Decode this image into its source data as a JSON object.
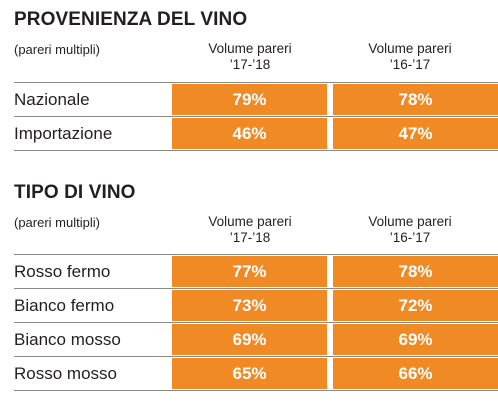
{
  "sections": [
    {
      "title": "PROVENIENZA DEL VINO",
      "subtitle": "(pareri multipli)",
      "columns": [
        {
          "line1": "Volume pareri",
          "line2": "’17-’18"
        },
        {
          "line1": "Volume pareri",
          "line2": "’16-’17"
        }
      ],
      "rows": [
        {
          "label": "Nazionale",
          "v1": "79%",
          "v2": "78%"
        },
        {
          "label": "Importazione",
          "v1": "46%",
          "v2": "47%"
        }
      ]
    },
    {
      "title": "TIPO DI VINO",
      "subtitle": "(pareri multipli)",
      "columns": [
        {
          "line1": "Volume pareri",
          "line2": "’17-’18"
        },
        {
          "line1": "Volume pareri",
          "line2": "’16-’17"
        }
      ],
      "rows": [
        {
          "label": "Rosso fermo",
          "v1": "77%",
          "v2": "78%"
        },
        {
          "label": "Bianco fermo",
          "v1": "73%",
          "v2": "72%"
        },
        {
          "label": "Bianco mosso",
          "v1": "69%",
          "v2": "69%"
        },
        {
          "label": "Rosso mosso",
          "v1": "65%",
          "v2": "66%"
        }
      ]
    }
  ],
  "colors": {
    "accent": "#f08a24",
    "text": "#231f20",
    "divider": "#8a8a8a"
  }
}
